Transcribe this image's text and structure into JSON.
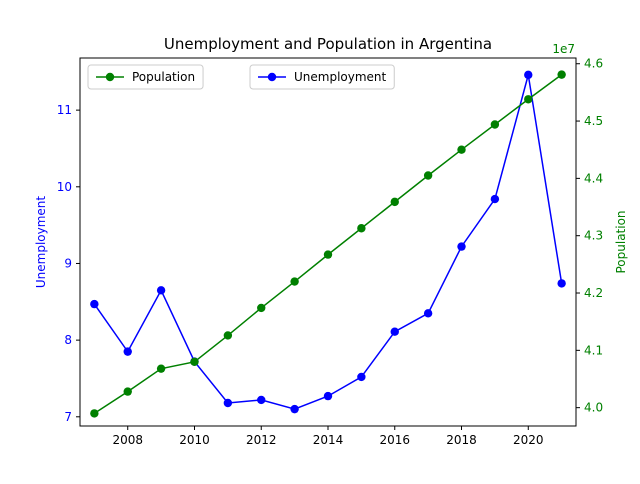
{
  "chart_data": {
    "type": "line",
    "title": "Unemployment and Population in Argentina",
    "xlabel": "",
    "x": [
      2007,
      2008,
      2009,
      2010,
      2011,
      2012,
      2013,
      2014,
      2015,
      2016,
      2017,
      2018,
      2019,
      2020,
      2021
    ],
    "x_ticks": [
      2008,
      2010,
      2012,
      2014,
      2016,
      2018,
      2020
    ],
    "xlim": [
      2006.57,
      2021.43
    ],
    "axes": {
      "left": {
        "label": "Unemployment",
        "color": "#0000ff",
        "ylim": [
          6.88,
          11.68
        ],
        "ticks": [
          7,
          8,
          9,
          10,
          11
        ]
      },
      "right": {
        "label": "Population",
        "color": "#008000",
        "ylim": [
          39.68,
          46.1
        ],
        "ticks": [
          40.0,
          41.0,
          42.0,
          43.0,
          44.0,
          45.0,
          46.0
        ],
        "tick_labels": [
          "4.0",
          "4.1",
          "4.2",
          "4.3",
          "4.4",
          "4.5",
          "4.6"
        ],
        "offset_text": "1e7"
      }
    },
    "series": [
      {
        "name": "Unemployment",
        "axis": "left",
        "color": "#0000ff",
        "values": [
          8.47,
          7.85,
          8.65,
          7.72,
          7.18,
          7.22,
          7.1,
          7.27,
          7.52,
          8.11,
          8.35,
          9.22,
          9.84,
          11.46,
          8.74
        ]
      },
      {
        "name": "Population",
        "axis": "right",
        "color": "#008000",
        "values": [
          39.9,
          40.28,
          40.68,
          40.8,
          41.26,
          41.74,
          42.2,
          42.67,
          43.13,
          43.59,
          44.05,
          44.5,
          44.94,
          45.38,
          45.81
        ]
      }
    ],
    "legends": [
      {
        "series": "Population",
        "placement": "upper-left"
      },
      {
        "series": "Unemployment",
        "placement": "upper-center"
      }
    ],
    "grid": false
  }
}
